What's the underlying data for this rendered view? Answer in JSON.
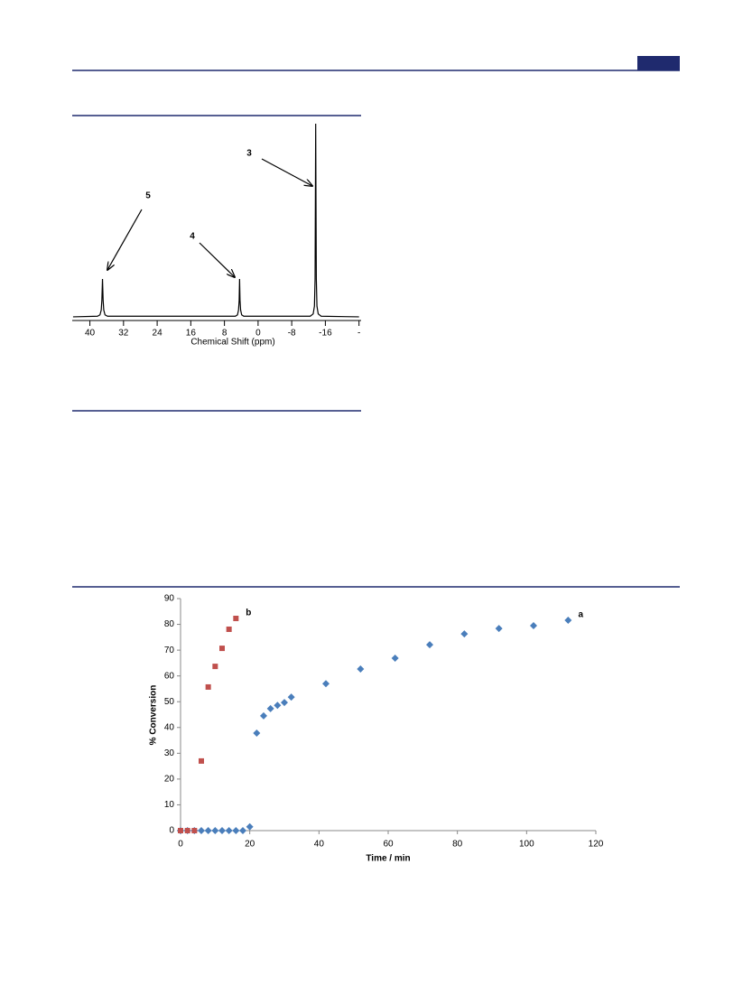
{
  "chart_data": [
    {
      "type": "line",
      "xlabel": "Chemical Shift (ppm)",
      "reversed_x": true,
      "color": "#000000",
      "x": [
        44,
        38.2,
        37.6,
        37.3,
        37.15,
        37,
        36.85,
        36.7,
        36.4,
        35.8,
        28,
        5.4,
        4.9,
        4.65,
        4.5,
        4.4,
        4.3,
        4.15,
        3.9,
        3.4,
        -12.4,
        -13.1,
        -13.4,
        -13.55,
        -13.7,
        -13.85,
        -14,
        -14.3,
        -15,
        -24
      ],
      "values": [
        0.5,
        0.8,
        1.5,
        4,
        9,
        20,
        9,
        4,
        1.5,
        0.8,
        0.8,
        0.8,
        1.5,
        4,
        9,
        20,
        9,
        4,
        1.5,
        0.8,
        0.8,
        2,
        6,
        20,
        100,
        20,
        6,
        2,
        0.8,
        0.5
      ],
      "xlim": [
        44.2,
        -24.5
      ],
      "ylim": [
        0,
        100
      ],
      "xticks": [
        40,
        32,
        24,
        16,
        8,
        0,
        -8,
        -16,
        {
          "value": -24,
          "label": "-"
        }
      ],
      "annotations": [
        "5",
        "4",
        "3"
      ]
    },
    {
      "type": "scatter",
      "xlabel": "Time / min",
      "ylabel": "% Conversion",
      "series": [
        {
          "name": "a",
          "color": "#4a7ebb",
          "marker": "diamond",
          "x": [
            0,
            2,
            4,
            6,
            8,
            10,
            12,
            14,
            16,
            18,
            20,
            22,
            24,
            26,
            28,
            30,
            32,
            42,
            52,
            62,
            72,
            82,
            92,
            102,
            112
          ],
          "values": [
            0,
            0,
            0,
            0,
            0,
            0,
            0,
            0,
            0,
            0,
            1.5,
            37.8,
            44.5,
            47.3,
            48.6,
            49.7,
            51.8,
            57,
            62.7,
            66.9,
            72.1,
            76.3,
            78.4,
            79.5,
            81.6
          ]
        },
        {
          "name": "b",
          "color": "#c0504d",
          "marker": "square",
          "x": [
            0,
            2,
            4,
            6,
            8,
            10,
            12,
            14,
            16
          ],
          "values": [
            0,
            0,
            0,
            27,
            55.7,
            63.7,
            70.7,
            78.1,
            82.3
          ]
        }
      ],
      "xlim": [
        0,
        120
      ],
      "ylim": [
        0,
        90
      ],
      "xticks": [
        0,
        20,
        40,
        60,
        80,
        100,
        120
      ],
      "yticks": [
        0,
        10,
        20,
        30,
        40,
        50,
        60,
        70,
        80,
        90
      ]
    }
  ]
}
